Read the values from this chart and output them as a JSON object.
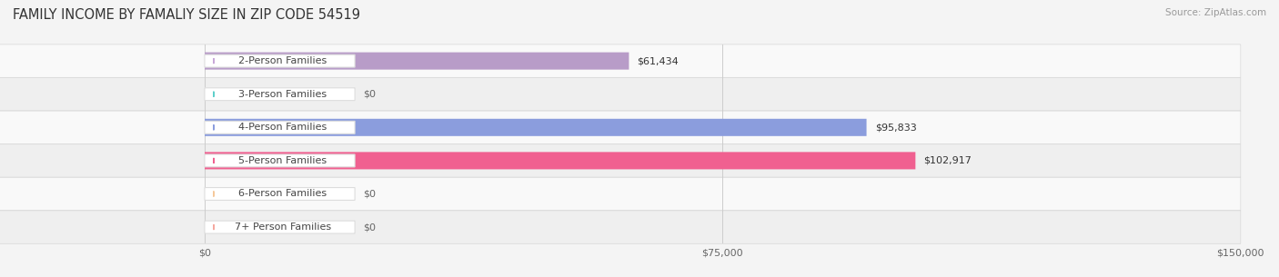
{
  "title": "FAMILY INCOME BY FAMALIY SIZE IN ZIP CODE 54519",
  "source": "Source: ZipAtlas.com",
  "categories": [
    "2-Person Families",
    "3-Person Families",
    "4-Person Families",
    "5-Person Families",
    "6-Person Families",
    "7+ Person Families"
  ],
  "values": [
    61434,
    0,
    95833,
    102917,
    0,
    0
  ],
  "bar_colors": [
    "#b89cc8",
    "#5ecfca",
    "#8b9ddd",
    "#f06090",
    "#f5c89a",
    "#f5a8a0"
  ],
  "label_dot_colors": [
    "#c8a8d8",
    "#5ecfca",
    "#8b9ddd",
    "#f06090",
    "#f5c89a",
    "#f5a8a0"
  ],
  "x_max": 150000,
  "x_ticks": [
    0,
    75000,
    150000
  ],
  "x_tick_labels": [
    "$0",
    "$75,000",
    "$150,000"
  ],
  "bar_height": 0.52,
  "background_color": "#f4f4f4",
  "row_bg_light": "#f9f9f9",
  "row_bg_dark": "#efefef",
  "value_labels": [
    "$61,434",
    "$0",
    "$95,833",
    "$102,917",
    "$0",
    "$0"
  ],
  "title_fontsize": 10.5,
  "label_fontsize": 8,
  "value_fontsize": 8,
  "tick_fontsize": 8
}
